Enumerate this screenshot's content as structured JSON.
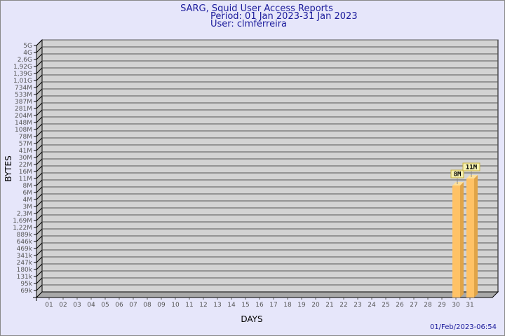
{
  "chart_data": {
    "type": "bar",
    "title": [
      "SARG, Squid User Access Reports",
      "Period: 01 Jan 2023-31 Jan 2023",
      "User: clmferreira"
    ],
    "xlabel": "DAYS",
    "ylabel": "BYTES",
    "y_scale": "log",
    "y_ticks": [
      "5G",
      "4G",
      "2,6G",
      "1,92G",
      "1,39G",
      "1,01G",
      "734M",
      "533M",
      "387M",
      "281M",
      "204M",
      "148M",
      "108M",
      "78M",
      "57M",
      "41M",
      "30M",
      "22M",
      "16M",
      "11M",
      "8M",
      "6M",
      "4M",
      "3M",
      "2,3M",
      "1,69M",
      "1,22M",
      "889k",
      "646k",
      "469k",
      "341k",
      "247k",
      "180k",
      "131k",
      "95k",
      "69k"
    ],
    "categories": [
      "01",
      "02",
      "03",
      "04",
      "05",
      "06",
      "07",
      "08",
      "09",
      "10",
      "11",
      "12",
      "13",
      "14",
      "15",
      "16",
      "17",
      "18",
      "19",
      "20",
      "21",
      "22",
      "23",
      "24",
      "25",
      "26",
      "27",
      "28",
      "29",
      "30",
      "31"
    ],
    "values": [
      null,
      null,
      null,
      null,
      null,
      null,
      null,
      null,
      null,
      null,
      null,
      null,
      null,
      null,
      null,
      null,
      null,
      null,
      null,
      null,
      null,
      null,
      null,
      null,
      null,
      null,
      null,
      null,
      null,
      "8M",
      "11M"
    ],
    "grid": true,
    "legend": "none",
    "colors": {
      "bar": "#ffc266",
      "bar_side": "#e0a448",
      "bar_top": "#ffe09a",
      "plot": "#d3d3d3",
      "label_box": "#f5f0b0"
    },
    "timestamp": "01/Feb/2023-06:54"
  }
}
